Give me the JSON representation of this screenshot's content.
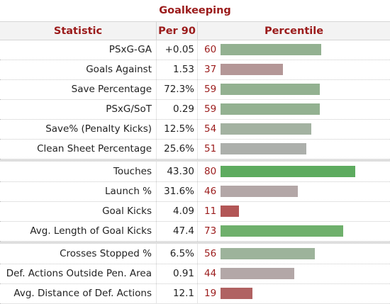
{
  "table": {
    "caption": "Goalkeeping",
    "headers": {
      "statistic": "Statistic",
      "per90": "Per 90",
      "percentile": "Percentile"
    },
    "groups": [
      {
        "rows": [
          {
            "stat": "PSxG-GA",
            "value": "+0.05",
            "percentile": 60,
            "bar_color": "#93b191"
          },
          {
            "stat": "Goals Against",
            "value": "1.53",
            "percentile": 37,
            "bar_color": "#b49797"
          },
          {
            "stat": "Save Percentage",
            "value": "72.3%",
            "percentile": 59,
            "bar_color": "#93b191"
          },
          {
            "stat": "PSxG/SoT",
            "value": "0.29",
            "percentile": 59,
            "bar_color": "#93b191"
          },
          {
            "stat": "Save% (Penalty Kicks)",
            "value": "12.5%",
            "percentile": 54,
            "bar_color": "#a3b2a1"
          },
          {
            "stat": "Clean Sheet Percentage",
            "value": "25.6%",
            "percentile": 51,
            "bar_color": "#acafab"
          }
        ]
      },
      {
        "rows": [
          {
            "stat": "Touches",
            "value": "43.30",
            "percentile": 80,
            "bar_color": "#5dab5f"
          },
          {
            "stat": "Launch %",
            "value": "31.6%",
            "percentile": 46,
            "bar_color": "#b3a7a7"
          },
          {
            "stat": "Goal Kicks",
            "value": "4.09",
            "percentile": 11,
            "bar_color": "#b25656"
          },
          {
            "stat": "Avg. Length of Goal Kicks",
            "value": "47.4",
            "percentile": 73,
            "bar_color": "#6fb06c"
          }
        ]
      },
      {
        "rows": [
          {
            "stat": "Crosses Stopped %",
            "value": "6.5%",
            "percentile": 56,
            "bar_color": "#9db39b"
          },
          {
            "stat": "Def. Actions Outside Pen. Area",
            "value": "0.91",
            "percentile": 44,
            "bar_color": "#b3a7a7"
          },
          {
            "stat": "Avg. Distance of Def. Actions",
            "value": "12.1",
            "percentile": 19,
            "bar_color": "#b06262"
          }
        ]
      }
    ]
  }
}
